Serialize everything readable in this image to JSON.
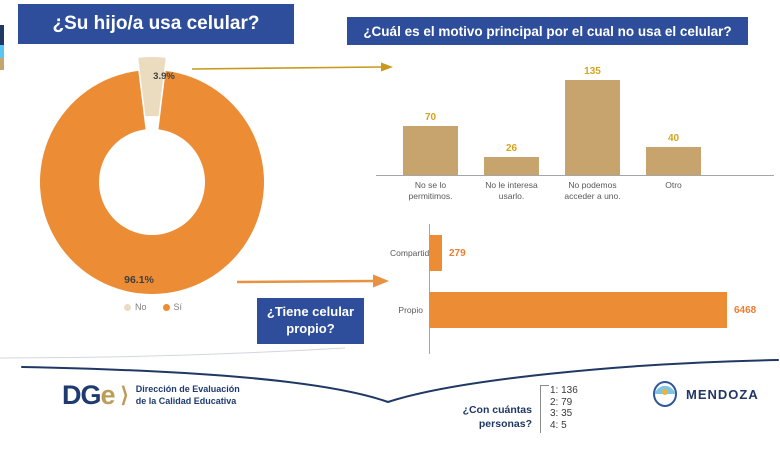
{
  "titles": {
    "usage": "¿Su hijo/a usa celular?",
    "reason": "¿Cuál es el motivo principal por el cual no usa el celular?",
    "own_phone": "¿Tiene celular propio?"
  },
  "chart_data": [
    {
      "type": "pie",
      "subtype": "donut",
      "title": "¿Su hijo/a usa celular?",
      "slices": [
        {
          "label": "No",
          "value_pct": 3.9,
          "display": "3.9%",
          "color": "#EBDCC0",
          "exploded": true
        },
        {
          "label": "Sí",
          "value_pct": 96.1,
          "display": "96.1%",
          "color": "#EC8C35",
          "exploded": false
        }
      ],
      "legend_position": "bottom"
    },
    {
      "type": "bar",
      "title": "¿Cuál es el motivo principal por el cual no usa el celular?",
      "categories": [
        "No se lo permitimos.",
        "No le interesa usarlo.",
        "No podemos acceder a uno.",
        "Otro"
      ],
      "values": [
        70,
        26,
        135,
        40
      ],
      "ylim": [
        0,
        135
      ],
      "grid": false,
      "bar_color": "#C7A36E",
      "value_label_color": "#D5A41D",
      "axis_color": "#A6A6A6"
    },
    {
      "type": "bar",
      "subtype": "horizontal",
      "title": "¿Tiene celular propio?",
      "categories": [
        "Compartido",
        "Propio"
      ],
      "values": [
        279,
        6468
      ],
      "xlim": [
        0,
        6500
      ],
      "grid": false,
      "bar_color": "#EC8C35",
      "value_label_color": "#ED7D31",
      "axis_color": "#A6A6A6"
    }
  ],
  "footer": {
    "dge": {
      "logo_dg": "DG",
      "logo_e": "e",
      "logo_chevron": "⟩",
      "org_line1": "Dirección de Evaluación",
      "org_line2": "de la Calidad Educativa"
    },
    "personas": {
      "label": "¿Con cuántas personas?",
      "counts": [
        "1: 136",
        "2: 79",
        "3: 35",
        "4: 5"
      ]
    },
    "mendoza": {
      "label": "MENDOZA"
    }
  },
  "colors": {
    "title_box_blue": "#2E4E9C",
    "orange": "#EC8C35",
    "beige": "#EBDCC0",
    "tan_bar": "#C7A36E",
    "gold_label": "#D5A41D",
    "gold_arrow": "#C9991B",
    "navy": "#1F3864",
    "axis_gray": "#A6A6A6",
    "label_gray": "#595959"
  }
}
